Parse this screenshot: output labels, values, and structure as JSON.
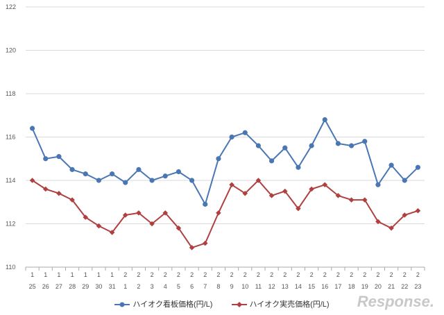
{
  "chart_data": {
    "type": "line",
    "title": "",
    "xlabel": "",
    "ylabel": "",
    "ylim": [
      110,
      122
    ],
    "yticks": [
      110,
      112,
      114,
      116,
      118,
      120,
      122
    ],
    "grid": "horizontal",
    "legend_position": "bottom",
    "x_month": [
      "1",
      "1",
      "1",
      "1",
      "1",
      "1",
      "1",
      "2",
      "2",
      "2",
      "2",
      "2",
      "2",
      "2",
      "2",
      "2",
      "2",
      "2",
      "2",
      "2",
      "2",
      "2",
      "2",
      "2",
      "2",
      "2",
      "2",
      "2",
      "2",
      "2"
    ],
    "x_day": [
      "25",
      "26",
      "27",
      "28",
      "29",
      "30",
      "31",
      "1",
      "2",
      "3",
      "4",
      "5",
      "6",
      "7",
      "8",
      "9",
      "10",
      "11",
      "12",
      "13",
      "14",
      "15",
      "16",
      "17",
      "18",
      "19",
      "20",
      "21",
      "22",
      "23"
    ],
    "series": [
      {
        "name": "ハイオク看板価格(円/L)",
        "color": "#4a77b4",
        "marker": "circle",
        "values": [
          116.4,
          115.0,
          115.1,
          114.5,
          114.3,
          114.0,
          114.3,
          113.9,
          114.5,
          114.0,
          114.2,
          114.4,
          114.0,
          112.9,
          115.0,
          116.0,
          116.2,
          115.6,
          114.9,
          115.5,
          114.6,
          115.6,
          116.8,
          115.7,
          115.6,
          115.8,
          113.8,
          114.7,
          114.0,
          114.6
        ]
      },
      {
        "name": "ハイオク実売価格(円/L)",
        "color": "#b04040",
        "marker": "diamond",
        "values": [
          114.0,
          113.6,
          113.4,
          113.1,
          112.3,
          111.9,
          111.6,
          112.4,
          112.5,
          112.0,
          112.5,
          111.8,
          110.9,
          111.1,
          112.5,
          113.8,
          113.4,
          114.0,
          113.3,
          113.5,
          112.7,
          113.6,
          113.8,
          113.3,
          113.1,
          113.1,
          112.1,
          111.8,
          112.4,
          112.6
        ]
      }
    ]
  },
  "watermark": "Response."
}
